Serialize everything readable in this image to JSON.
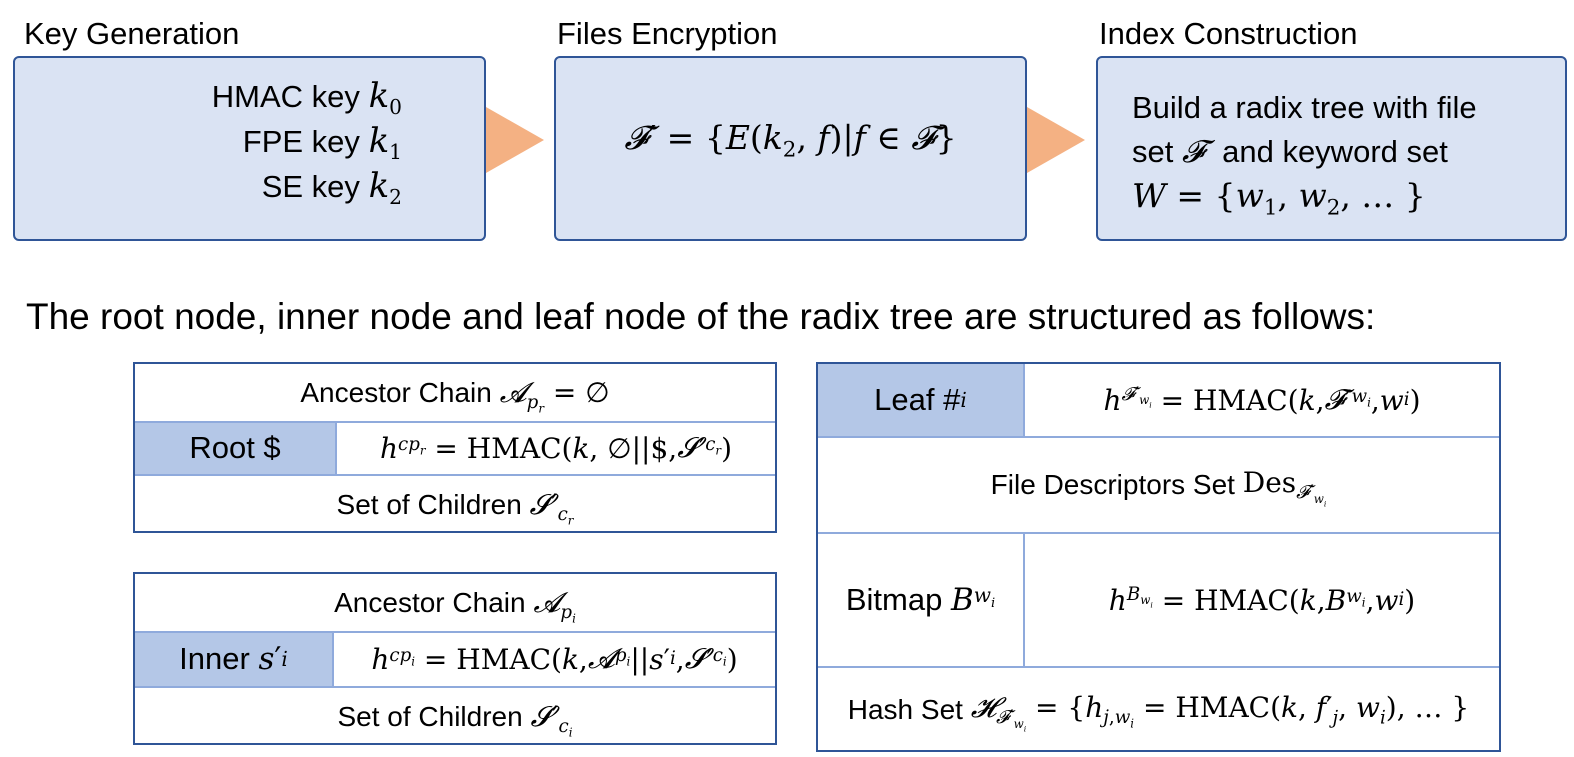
{
  "stages": {
    "key_generation": {
      "title": "Key Generation",
      "keys": [
        {
          "label": "HMAC key",
          "var": "k",
          "sub": "0"
        },
        {
          "label": "FPE key",
          "var": "k",
          "sub": "1"
        },
        {
          "label": "SE key",
          "var": "k",
          "sub": "2"
        }
      ]
    },
    "files_encryption": {
      "title": "Files Encryption",
      "formula": "𝓕′ = {E(k₂, f) | f ∈ 𝓕}"
    },
    "index_construction": {
      "title": "Index Construction",
      "line1": "Build a radix tree with file",
      "line2_prefix": "set",
      "line2_suffix": "and keyword set",
      "line3": "W = {w₁, w₂, … }"
    }
  },
  "caption": "The root node, inner node and leaf node of the radix tree are structured as follows:",
  "root_node": {
    "ancestor": "Ancestor Chain",
    "name": "Root $",
    "hash": "= HMAC(k, ∅||$, 𝓢′cr)",
    "children": "Set of Children"
  },
  "inner_node": {
    "ancestor": "Ancestor Chain",
    "name": "Inner",
    "hash": "= HMAC(k, 𝓐pi||s′i, 𝓢′ci)",
    "children": "Set of Children"
  },
  "leaf_node": {
    "name": "Leaf #",
    "hash": "= HMAC(k, 𝓕′wi, wi)",
    "descriptors": "File Descriptors Set",
    "bitmap": "Bitmap",
    "bitmap_hash": "= HMAC(k, Bwi, wi)",
    "hashset": "Hash Set"
  },
  "colors": {
    "box_fill": "#dae3f3",
    "box_border": "#2f5597",
    "arrow": "#f4b183",
    "highlight": "#b4c7e7",
    "divider": "#8faadc"
  }
}
